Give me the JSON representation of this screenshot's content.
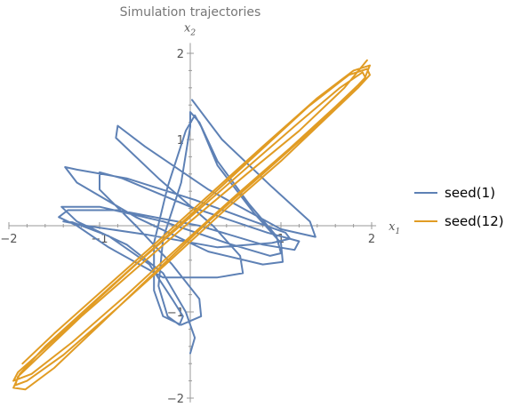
{
  "chart_data": {
    "type": "line",
    "title": "Simulation trajectories",
    "xlabel": {
      "var": "x",
      "sub": "1"
    },
    "ylabel": {
      "var": "x",
      "sub": "2"
    },
    "xlim": [
      -2,
      2.05
    ],
    "ylim": [
      -2.05,
      2.12
    ],
    "xticks": [
      -2,
      -1,
      0,
      1,
      2
    ],
    "yticks": [
      -2,
      -1,
      1,
      2
    ],
    "xtick_labels": [
      "−2",
      "−1",
      "",
      "1",
      "2"
    ],
    "ytick_labels": [
      "−2",
      "−1",
      "1",
      "2"
    ],
    "grid": false,
    "legend_position": "right",
    "series": [
      {
        "name": "seed(1)",
        "color": "#5e81b5",
        "points": [
          [
            0.02,
            1.46
          ],
          [
            0.35,
            1.0
          ],
          [
            0.9,
            0.45
          ],
          [
            1.32,
            0.05
          ],
          [
            1.38,
            -0.13
          ],
          [
            1.0,
            -0.04
          ],
          [
            0.2,
            0.42
          ],
          [
            -0.5,
            0.92
          ],
          [
            -0.8,
            1.16
          ],
          [
            -0.82,
            1.02
          ],
          [
            -0.35,
            0.55
          ],
          [
            0.25,
            0.0
          ],
          [
            0.55,
            -0.35
          ],
          [
            0.58,
            -0.55
          ],
          [
            0.3,
            -0.6
          ],
          [
            -0.3,
            -0.6
          ],
          [
            -0.9,
            -0.25
          ],
          [
            -1.25,
            0.0
          ],
          [
            -1.45,
            0.1
          ],
          [
            -1.35,
            0.18
          ],
          [
            -0.8,
            0.18
          ],
          [
            0.1,
            0.0
          ],
          [
            0.8,
            -0.22
          ],
          [
            1.15,
            -0.28
          ],
          [
            1.2,
            -0.18
          ],
          [
            0.85,
            -0.08
          ],
          [
            0.0,
            0.22
          ],
          [
            -0.75,
            0.55
          ],
          [
            -1.0,
            0.62
          ],
          [
            -1.0,
            0.42
          ],
          [
            -0.6,
            0.0
          ],
          [
            -0.2,
            -0.45
          ],
          [
            0.1,
            -0.85
          ],
          [
            0.12,
            -1.05
          ],
          [
            -0.1,
            -1.15
          ],
          [
            -0.3,
            -1.05
          ],
          [
            -0.4,
            -0.75
          ],
          [
            -0.4,
            -0.2
          ],
          [
            -0.25,
            0.45
          ],
          [
            -0.05,
            1.1
          ],
          [
            0.05,
            1.28
          ],
          [
            0.12,
            1.15
          ],
          [
            0.3,
            0.7
          ],
          [
            0.7,
            0.15
          ],
          [
            1.0,
            -0.2
          ],
          [
            1.02,
            -0.42
          ],
          [
            0.8,
            -0.45
          ],
          [
            0.2,
            -0.3
          ],
          [
            -0.6,
            0.1
          ],
          [
            -1.25,
            0.5
          ],
          [
            -1.38,
            0.68
          ],
          [
            -1.25,
            0.65
          ],
          [
            -0.7,
            0.55
          ],
          [
            0.05,
            0.3
          ],
          [
            0.7,
            0.05
          ],
          [
            1.05,
            -0.08
          ],
          [
            1.1,
            -0.15
          ],
          [
            0.9,
            -0.2
          ],
          [
            0.3,
            -0.25
          ],
          [
            -0.5,
            -0.1
          ],
          [
            -1.15,
            0.0
          ],
          [
            -1.4,
            0.05
          ],
          [
            -1.3,
            0.04
          ],
          [
            -0.9,
            -0.12
          ],
          [
            -0.45,
            -0.45
          ],
          [
            -0.2,
            -0.85
          ],
          [
            -0.08,
            -1.05
          ],
          [
            -0.12,
            -1.15
          ],
          [
            -0.25,
            -1.05
          ],
          [
            -0.35,
            -0.7
          ],
          [
            -0.3,
            -0.15
          ],
          [
            -0.1,
            0.5
          ],
          [
            0.0,
            1.15
          ],
          [
            0.0,
            1.32
          ],
          [
            0.1,
            1.2
          ],
          [
            0.3,
            0.75
          ],
          [
            0.65,
            0.25
          ],
          [
            0.95,
            -0.12
          ],
          [
            1.0,
            -0.32
          ],
          [
            0.88,
            -0.35
          ],
          [
            0.4,
            -0.2
          ],
          [
            -0.3,
            0.05
          ],
          [
            -1.0,
            0.22
          ],
          [
            -1.42,
            0.22
          ],
          [
            -1.25,
            0.05
          ],
          [
            -0.7,
            -0.22
          ],
          [
            -0.3,
            -0.55
          ],
          [
            -0.05,
            -1.0
          ],
          [
            0.05,
            -1.3
          ],
          [
            0.0,
            -1.48
          ]
        ]
      },
      {
        "name": "seed(12)",
        "color": "#e19c24",
        "points": [
          [
            1.95,
            1.92
          ],
          [
            1.7,
            1.6
          ],
          [
            1.2,
            1.1
          ],
          [
            0.6,
            0.58
          ],
          [
            0.0,
            0.05
          ],
          [
            -0.6,
            -0.5
          ],
          [
            -1.2,
            -1.05
          ],
          [
            -1.7,
            -1.55
          ],
          [
            -1.9,
            -1.75
          ],
          [
            -1.93,
            -1.85
          ],
          [
            -1.8,
            -1.8
          ],
          [
            -1.4,
            -1.5
          ],
          [
            -0.8,
            -0.95
          ],
          [
            -0.2,
            -0.38
          ],
          [
            0.4,
            0.2
          ],
          [
            1.0,
            0.75
          ],
          [
            1.5,
            1.25
          ],
          [
            1.85,
            1.6
          ],
          [
            1.98,
            1.75
          ],
          [
            1.95,
            1.82
          ],
          [
            1.75,
            1.75
          ],
          [
            1.3,
            1.38
          ],
          [
            0.7,
            0.8
          ],
          [
            0.1,
            0.22
          ],
          [
            -0.5,
            -0.35
          ],
          [
            -1.1,
            -0.92
          ],
          [
            -1.6,
            -1.4
          ],
          [
            -1.88,
            -1.72
          ],
          [
            -1.95,
            -1.88
          ],
          [
            -1.82,
            -1.9
          ],
          [
            -1.5,
            -1.65
          ],
          [
            -1.0,
            -1.15
          ],
          [
            -0.4,
            -0.55
          ],
          [
            0.2,
            0.05
          ],
          [
            0.8,
            0.6
          ],
          [
            1.35,
            1.12
          ],
          [
            1.75,
            1.52
          ],
          [
            1.93,
            1.72
          ],
          [
            1.9,
            1.78
          ],
          [
            1.65,
            1.6
          ],
          [
            1.2,
            1.2
          ],
          [
            0.6,
            0.65
          ],
          [
            0.0,
            0.1
          ],
          [
            -0.6,
            -0.45
          ],
          [
            -1.15,
            -0.98
          ],
          [
            -1.6,
            -1.42
          ],
          [
            -1.9,
            -1.7
          ],
          [
            -1.95,
            -1.8
          ],
          [
            -1.75,
            -1.72
          ],
          [
            -1.3,
            -1.35
          ],
          [
            -0.7,
            -0.8
          ],
          [
            -0.1,
            -0.22
          ],
          [
            0.5,
            0.35
          ],
          [
            1.1,
            0.9
          ],
          [
            1.6,
            1.38
          ],
          [
            1.92,
            1.7
          ],
          [
            1.98,
            1.86
          ],
          [
            1.8,
            1.8
          ],
          [
            1.4,
            1.48
          ],
          [
            0.8,
            0.92
          ],
          [
            0.2,
            0.35
          ],
          [
            -0.4,
            -0.22
          ],
          [
            -1.0,
            -0.78
          ],
          [
            -1.5,
            -1.25
          ],
          [
            -1.85,
            -1.6
          ]
        ]
      }
    ]
  }
}
